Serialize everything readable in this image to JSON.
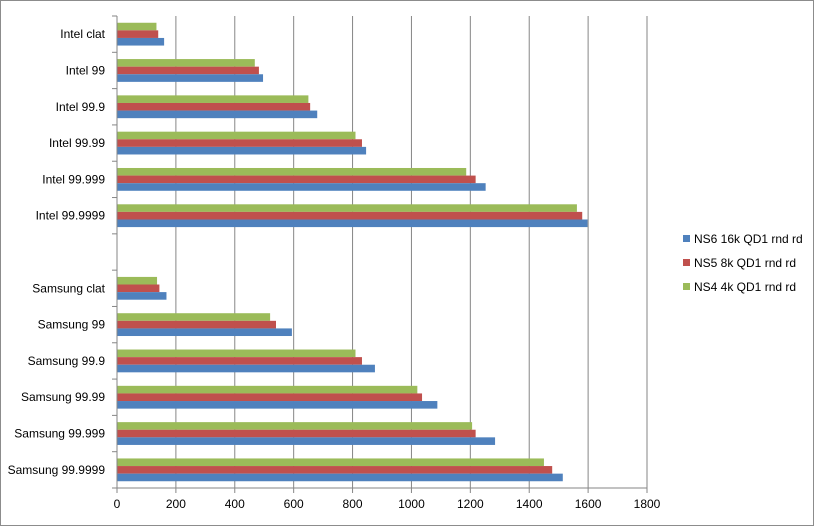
{
  "chart_data": {
    "type": "bar",
    "orientation": "horizontal",
    "categories": [
      "Intel clat",
      "Intel 99",
      "Intel 99.9",
      "Intel 99.99",
      "Intel 99.999",
      "Intel 99.9999",
      "",
      "Samsung clat",
      "Samsung 99",
      "Samsung 99.9",
      "Samsung 99.99",
      "Samsung 99.999",
      "Samsung 99.9999"
    ],
    "series": [
      {
        "name": "NS4 4k QD1 rnd rd",
        "color": "#9BBB59",
        "values": [
          134,
          468,
          650,
          810,
          1186,
          1562,
          null,
          136,
          520,
          810,
          1020,
          1206,
          1450
        ]
      },
      {
        "name": "NS5 8k QD1 rnd rd",
        "color": "#C0504D",
        "values": [
          140,
          482,
          656,
          832,
          1218,
          1580,
          null,
          144,
          540,
          832,
          1036,
          1218,
          1478
        ]
      },
      {
        "name": "NS6 16k QD1 rnd rd",
        "color": "#4F81BD",
        "values": [
          160,
          496,
          680,
          846,
          1252,
          1598,
          null,
          168,
          594,
          876,
          1088,
          1284,
          1514
        ]
      }
    ],
    "xlim": [
      0,
      1800
    ],
    "xticks": [
      "0",
      "200",
      "400",
      "600",
      "800",
      "1000",
      "1200",
      "1400",
      "1600",
      "1800"
    ],
    "title": "",
    "xlabel": "",
    "ylabel": "",
    "grid": "vertical major gridlines",
    "legend_position": "right"
  }
}
